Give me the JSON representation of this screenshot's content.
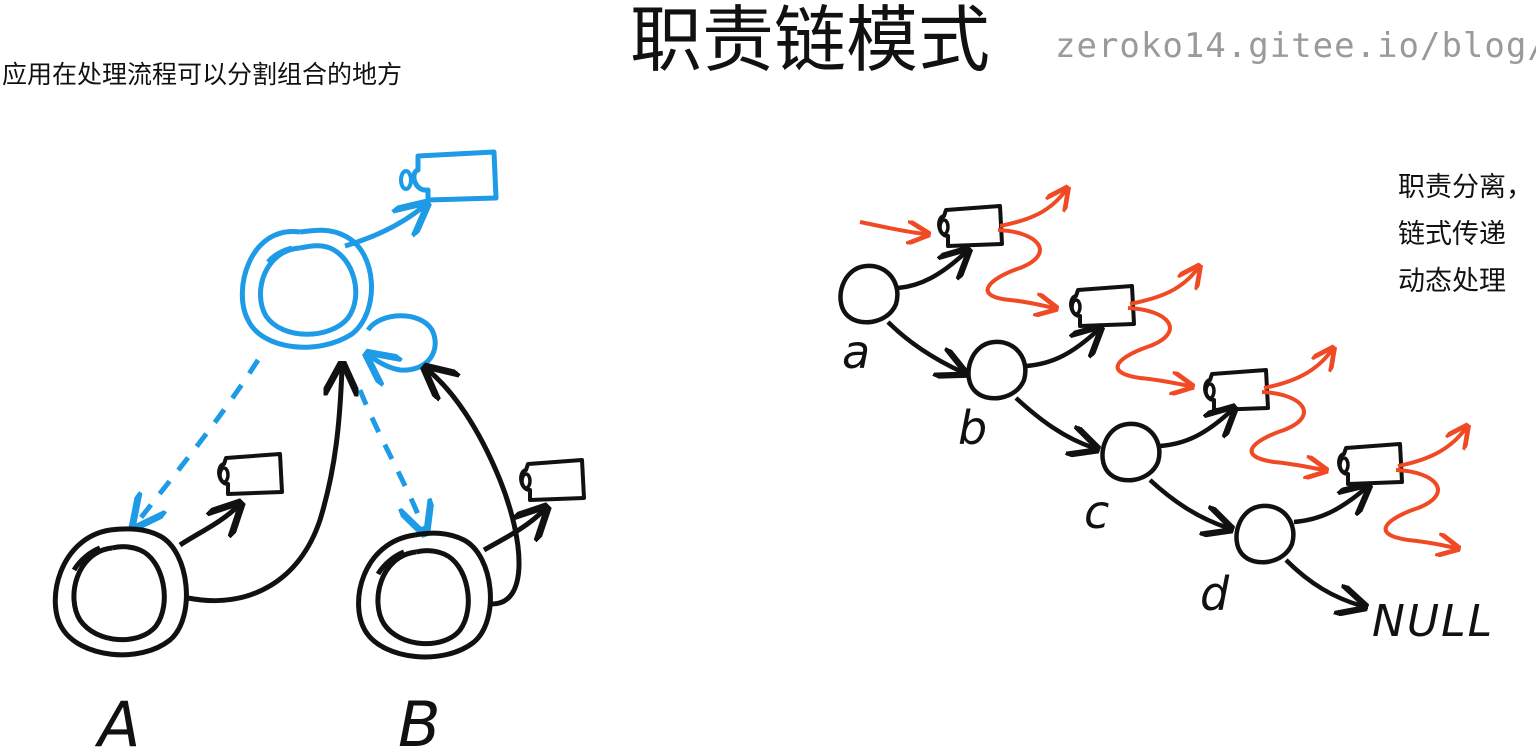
{
  "header": {
    "title": "职责链模式",
    "url": "zeroko14.gitee.io/blog/"
  },
  "intro": {
    "text": "应用在处理流程可以分割组合的地方"
  },
  "note": {
    "lines": [
      "职责分离，",
      "链式传递",
      "动态处理"
    ]
  },
  "left_diagram": {
    "node_a_label": "A",
    "node_b_label": "B"
  },
  "chain_diagram": {
    "node_labels": [
      "a",
      "b",
      "c",
      "d"
    ],
    "end_label": "NULL"
  },
  "colors": {
    "ink": "#111111",
    "blue": "#1e9be6",
    "red": "#f04a24",
    "url_gray": "#9a9a9a"
  }
}
